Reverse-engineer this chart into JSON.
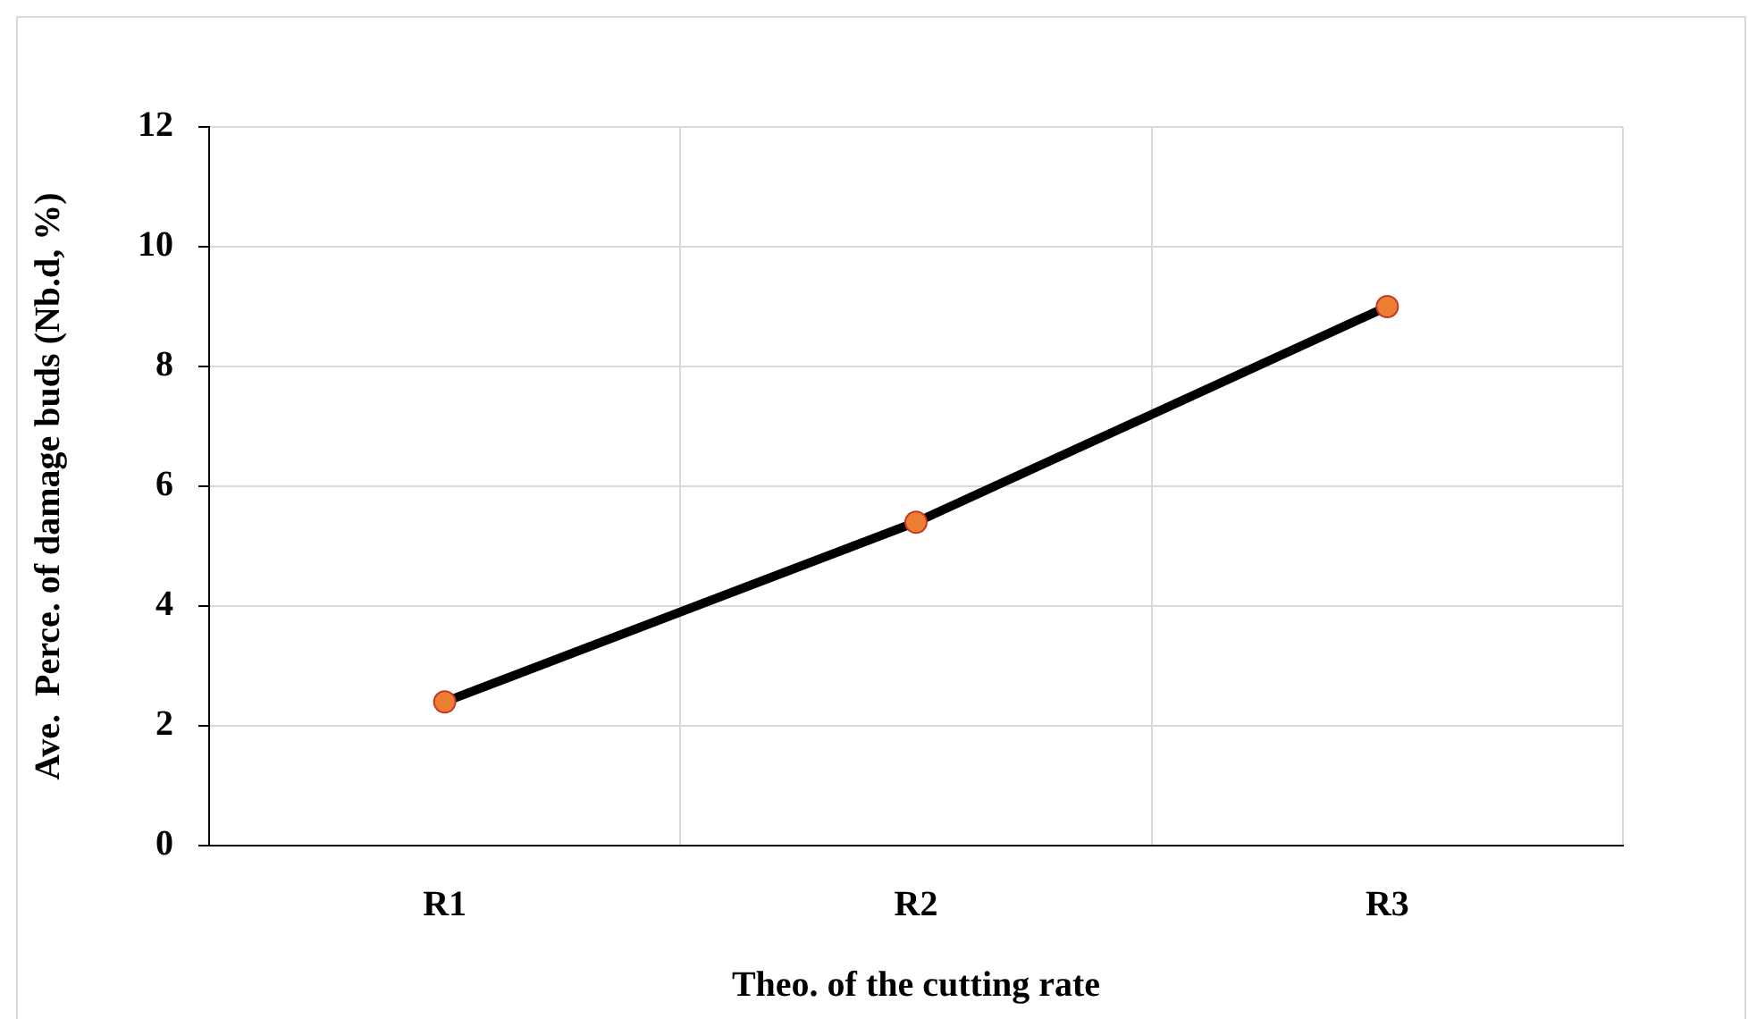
{
  "chart_data": {
    "type": "line",
    "xlabel": "Theo. of the cutting rate",
    "ylabel": "Ave.  Perce. of damage buds (Nb.d, %)",
    "categories": [
      "R1",
      "R2",
      "R3"
    ],
    "series": [
      {
        "color": "#000000",
        "values": [
          2.4,
          5.4,
          9.0
        ]
      }
    ],
    "marker": "circle",
    "ylim": [
      0,
      12
    ],
    "yticks": [
      0,
      2,
      4,
      6,
      8,
      10,
      12
    ],
    "grid": true,
    "legend": false
  }
}
